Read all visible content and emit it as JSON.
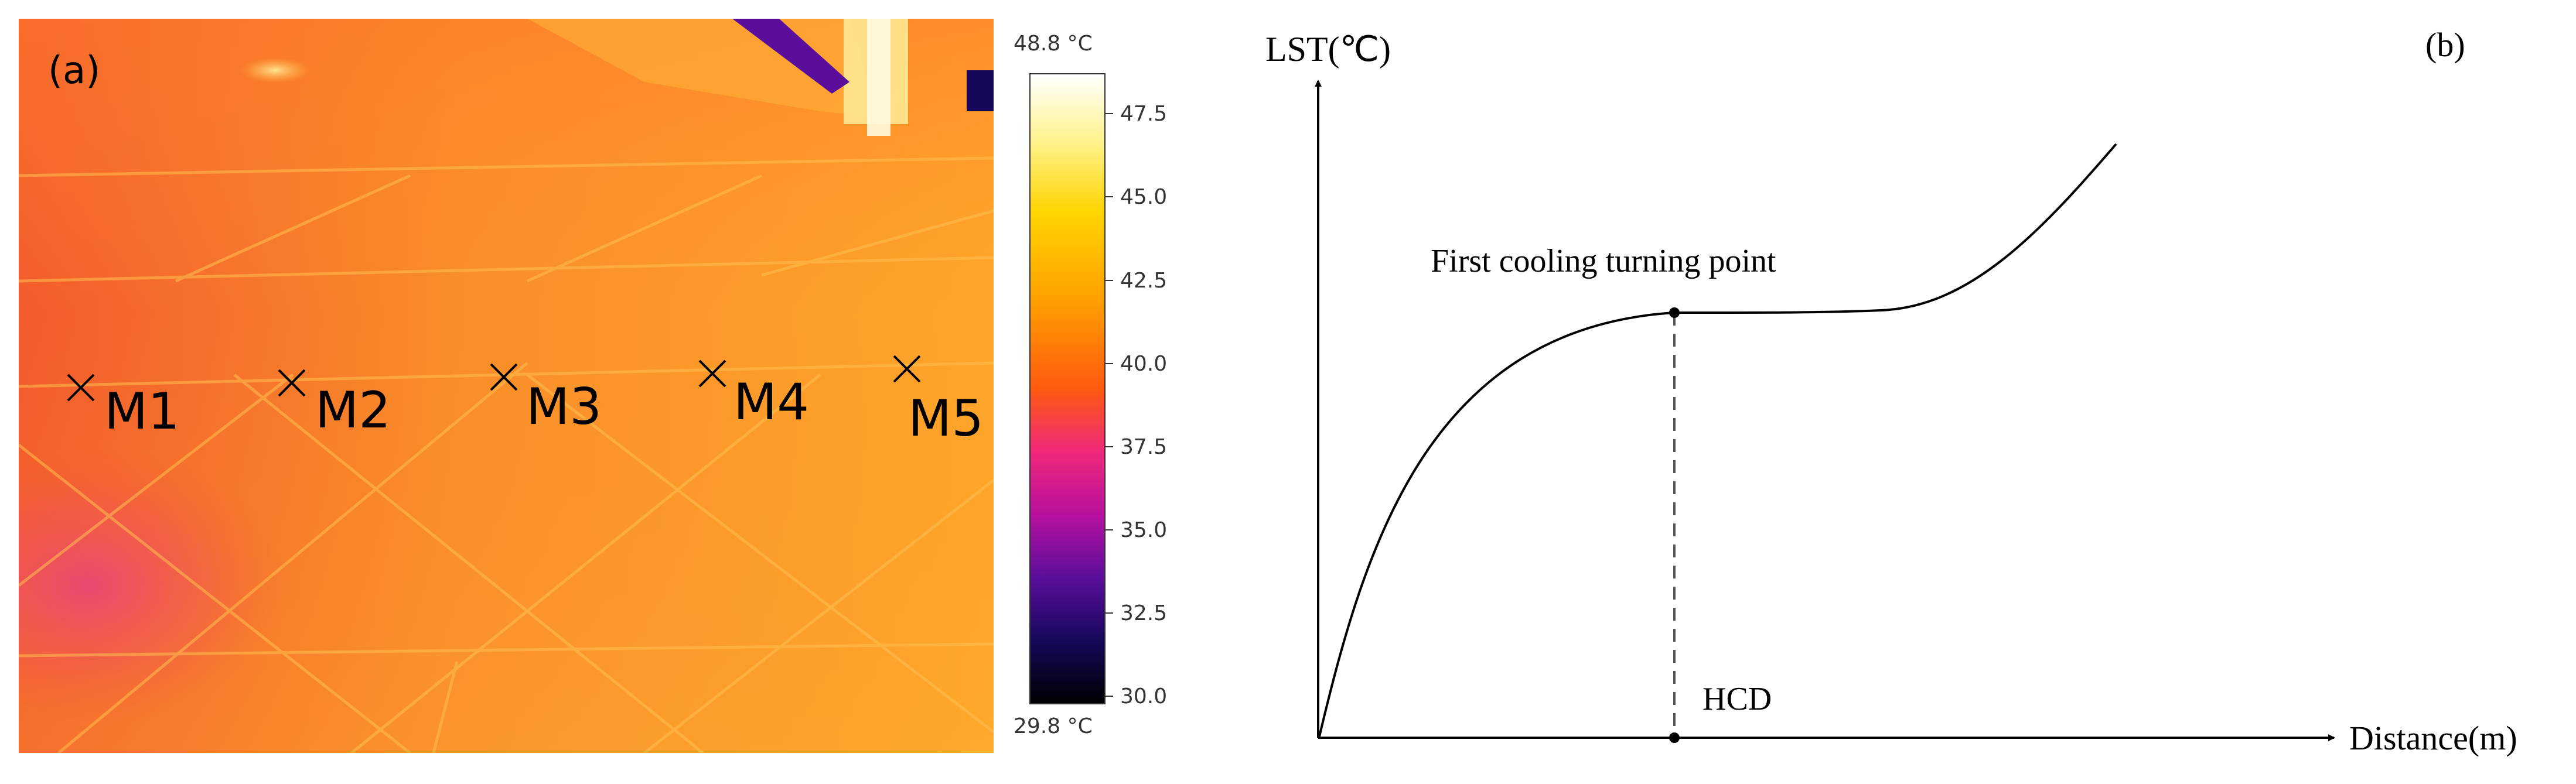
{
  "panel_a": {
    "label": "(a)",
    "markers": [
      {
        "id": "M1"
      },
      {
        "id": "M2"
      },
      {
        "id": "M3"
      },
      {
        "id": "M4"
      },
      {
        "id": "M5"
      }
    ],
    "colorbar": {
      "max_label": "48.8 °C",
      "min_label": "29.8 °C",
      "ticks": [
        "47.5",
        "45.0",
        "42.5",
        "40.0",
        "37.5",
        "35.0",
        "32.5",
        "30.0"
      ],
      "colors": [
        "#ffffff",
        "#fff28a",
        "#ffd400",
        "#ff9f00",
        "#ff5a10",
        "#f0287a",
        "#b8109e",
        "#5b0e9c",
        "#15085a",
        "#000000"
      ]
    }
  },
  "panel_b": {
    "label": "(b)",
    "y_axis_label": "LST(℃)",
    "x_axis_label": "Distance(m)",
    "annotation": "First cooling turning point",
    "turning_point_label": "HCD"
  }
}
